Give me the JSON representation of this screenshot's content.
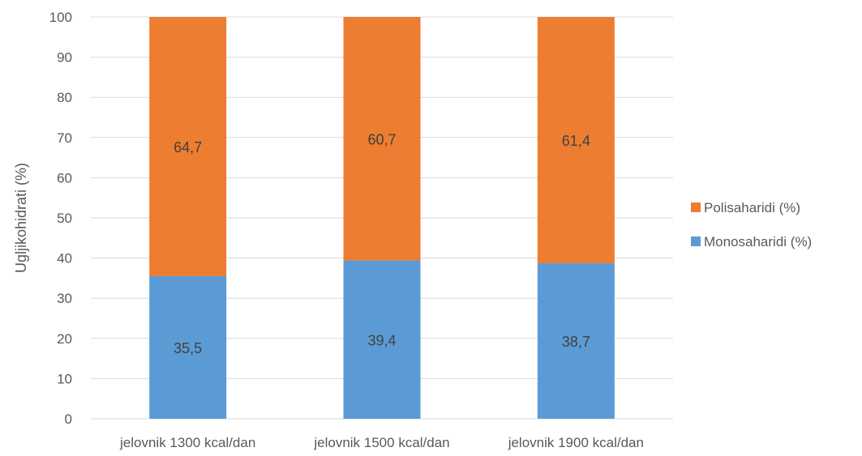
{
  "chart_data": {
    "type": "bar",
    "stacked": true,
    "categories": [
      "jelovnik 1300 kcal/dan",
      "jelovnik 1500 kcal/dan",
      "jelovnik 1900 kcal/dan"
    ],
    "series": [
      {
        "name": "Monosaharidi (%)",
        "values": [
          35.5,
          39.4,
          38.7
        ],
        "labels": [
          "35,5",
          "39,4",
          "38,7"
        ],
        "color": "#5b9bd5"
      },
      {
        "name": "Polisaharidi (%)",
        "values": [
          64.7,
          60.7,
          61.4
        ],
        "labels": [
          "64,7",
          "60,7",
          "61,4"
        ],
        "color": "#ed7d31"
      }
    ],
    "title": "",
    "xlabel": "",
    "ylabel": "Ugljikohidrati (%)",
    "ylim": [
      0,
      100
    ],
    "yticks": [
      0,
      10,
      20,
      30,
      40,
      50,
      60,
      70,
      80,
      90,
      100
    ],
    "grid": true,
    "legend_position": "right",
    "legend_order": [
      "Polisaharidi (%)",
      "Monosaharidi (%)"
    ]
  }
}
